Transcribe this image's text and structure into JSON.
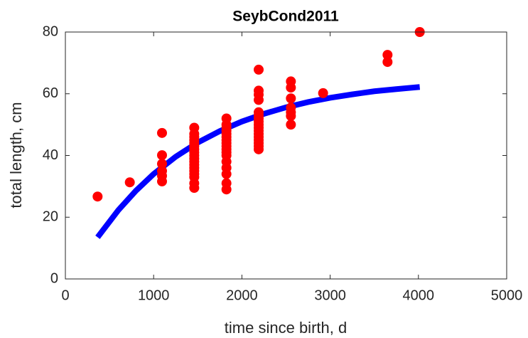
{
  "chart_data": {
    "type": "scatter",
    "title": "SeybCond2011",
    "xlabel": "time since birth, d",
    "ylabel": "total length, cm",
    "xlim": [
      0,
      5000
    ],
    "xticks": [
      0,
      1000,
      2000,
      3000,
      4000,
      5000
    ],
    "ylim": [
      0,
      80
    ],
    "yticks": [
      0,
      20,
      40,
      60,
      80
    ],
    "series": [
      {
        "type": "scatter",
        "color": "#ff0000",
        "x": [
          365,
          730,
          1095,
          1095,
          1095,
          1095,
          1095,
          1095,
          1460,
          1460,
          1460,
          1460,
          1460,
          1460,
          1460,
          1460,
          1460,
          1460,
          1460,
          1460,
          1460,
          1460,
          1460,
          1460,
          1460,
          1460,
          1825,
          1825,
          1825,
          1825,
          1825,
          1825,
          1825,
          1825,
          1825,
          1825,
          1825,
          1825,
          1825,
          1825,
          1825,
          1825,
          1825,
          2190,
          2190,
          2190,
          2190,
          2190,
          2190,
          2190,
          2190,
          2190,
          2190,
          2190,
          2190,
          2190,
          2190,
          2190,
          2190,
          2190,
          2555,
          2555,
          2555,
          2555,
          2555,
          2555,
          2555,
          2920,
          3650,
          3650,
          4015
        ],
        "values": [
          26.7,
          31.3,
          47.3,
          40.1,
          37.3,
          35,
          33.4,
          31.6,
          49,
          47,
          46,
          45,
          44,
          43,
          42,
          41,
          40,
          39,
          38,
          37,
          36,
          35,
          34,
          33,
          31,
          29.5,
          52,
          50,
          49,
          48,
          47,
          46,
          45,
          44,
          43,
          42,
          41,
          40,
          38,
          36,
          34,
          31,
          29,
          67.8,
          61,
          59.7,
          58,
          54,
          53,
          52,
          51,
          50,
          49,
          48,
          47,
          46,
          45,
          44,
          43,
          42,
          64,
          62,
          58.5,
          55.5,
          54,
          52.8,
          50,
          60.2,
          72.6,
          70.3,
          80
        ]
      },
      {
        "type": "line",
        "color": "#0000ff",
        "x": [
          365,
          600,
          800,
          1000,
          1250,
          1500,
          1750,
          2000,
          2250,
          2500,
          2750,
          3000,
          3250,
          3500,
          3750,
          4015
        ],
        "values": [
          13.5,
          22.3,
          28.6,
          34.0,
          39.6,
          44.2,
          47.9,
          51.0,
          53.5,
          55.6,
          57.3,
          58.7,
          59.8,
          60.8,
          61.5,
          62.2
        ]
      }
    ]
  }
}
